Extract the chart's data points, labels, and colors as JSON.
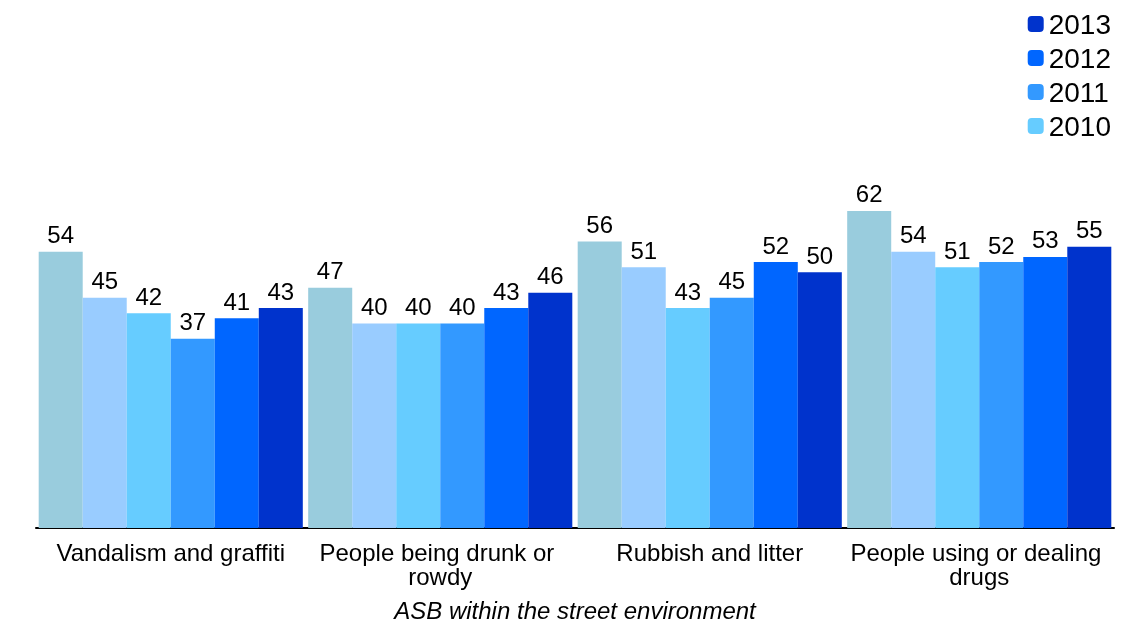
{
  "chart_data": {
    "type": "bar",
    "xlabel": "ASB within the street environment",
    "categories": [
      "Vandalism and graffiti",
      "People being drunk or rowdy",
      "Rubbish and litter",
      "People using or dealing drugs"
    ],
    "series": [
      {
        "color": "#99ccdd",
        "values": [
          54,
          47,
          56,
          62
        ]
      },
      {
        "color": "#99ccff",
        "values": [
          45,
          40,
          51,
          54
        ]
      },
      {
        "name": "2010",
        "color": "#66ccff",
        "values": [
          42,
          40,
          43,
          51
        ]
      },
      {
        "name": "2011",
        "color": "#3399ff",
        "values": [
          37,
          40,
          45,
          52
        ]
      },
      {
        "name": "2012",
        "color": "#0066ff",
        "values": [
          41,
          43,
          52,
          53
        ]
      },
      {
        "name": "2013",
        "color": "#0033cc",
        "values": [
          43,
          46,
          50,
          55
        ]
      }
    ],
    "data_labels": true,
    "legend": "top right"
  }
}
